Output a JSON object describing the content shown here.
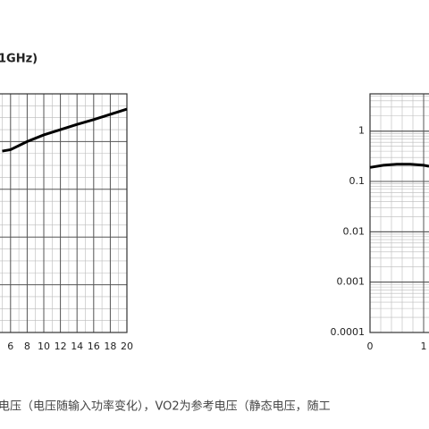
{
  "chart_data": [
    {
      "type": "line",
      "title": "1GHz)",
      "x": [
        5,
        6,
        8,
        10,
        12,
        14,
        16,
        18,
        20
      ],
      "series": [
        {
          "color": "#000000",
          "values": [
            3.8,
            3.83,
            4.0,
            4.14,
            4.25,
            4.36,
            4.46,
            4.57,
            4.68
          ]
        }
      ],
      "xlim": [
        0,
        20
      ],
      "xticks": [
        6,
        8,
        10,
        12,
        14,
        16,
        18,
        20
      ],
      "ylim": [
        0,
        5
      ],
      "grid": true
    },
    {
      "type": "line",
      "log_y": true,
      "x": [
        0,
        0.25,
        0.5,
        0.75,
        1,
        1.1
      ],
      "series": [
        {
          "color": "#000000",
          "values": [
            0.19,
            0.21,
            0.22,
            0.22,
            0.21,
            0.2
          ]
        }
      ],
      "xlim": [
        0,
        2
      ],
      "xticks": [
        0,
        1
      ],
      "ylim": [
        0.0001,
        5.5
      ],
      "yticks": [
        1,
        0.1,
        0.01,
        0.001,
        0.0001
      ],
      "grid": true
    }
  ],
  "caption": "电压（电压随输入功率变化），VO2为参考电压（静态电压，随工"
}
